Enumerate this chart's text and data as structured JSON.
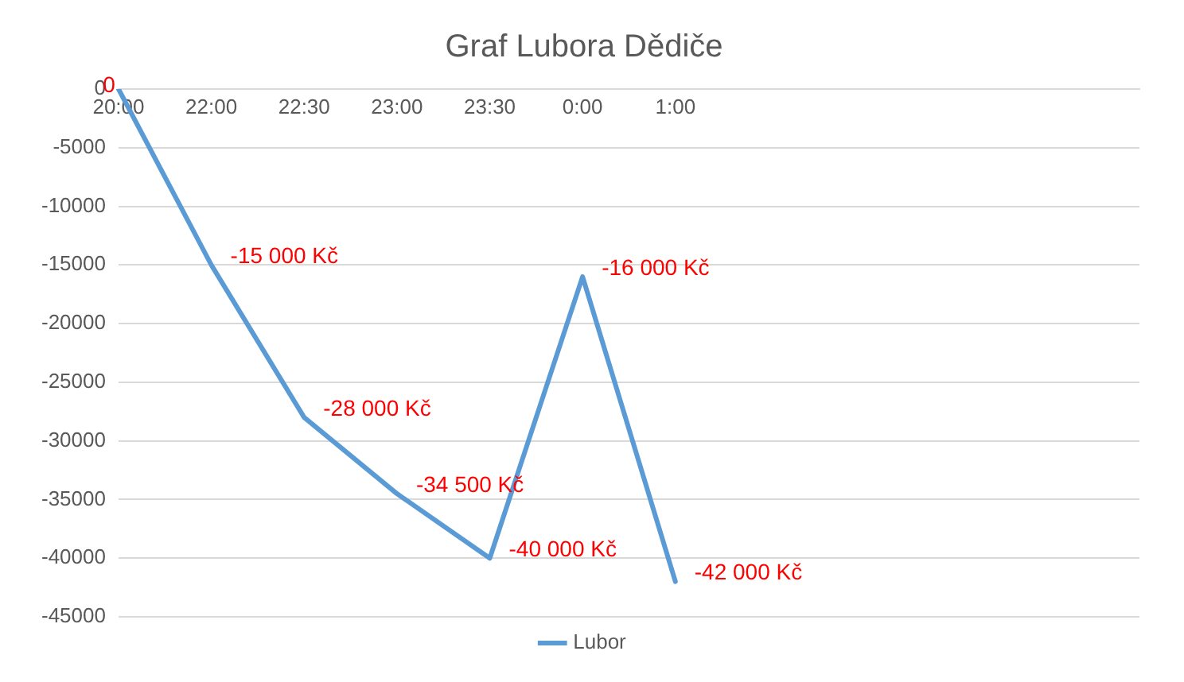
{
  "chart_data": {
    "type": "line",
    "title": "Graf Lubora Dědiče",
    "categories": [
      "20:00",
      "22:00",
      "22:30",
      "23:00",
      "23:30",
      "0:00",
      "1:00",
      null,
      null,
      null,
      null,
      null
    ],
    "series": [
      {
        "name": "Lubor",
        "color": "#5b9bd5",
        "values": [
          0,
          -15000,
          -28000,
          -34500,
          -40000,
          -16000,
          -42000,
          null,
          null,
          null,
          null,
          null
        ],
        "value_labels": [
          "0",
          "-15 000 Kč",
          "-28 000 Kč",
          "-34 500 Kč",
          "-40 000 Kč",
          "-16 000 Kč",
          "-42 000 Kč",
          null,
          null,
          null,
          null,
          null
        ]
      }
    ],
    "ylim": [
      -45000,
      0
    ],
    "yticks": [
      0,
      -5000,
      -10000,
      -15000,
      -20000,
      -25000,
      -30000,
      -35000,
      -40000,
      -45000
    ],
    "grid": "y",
    "legend": "bottom",
    "marker": "none",
    "line_style": "solid"
  }
}
